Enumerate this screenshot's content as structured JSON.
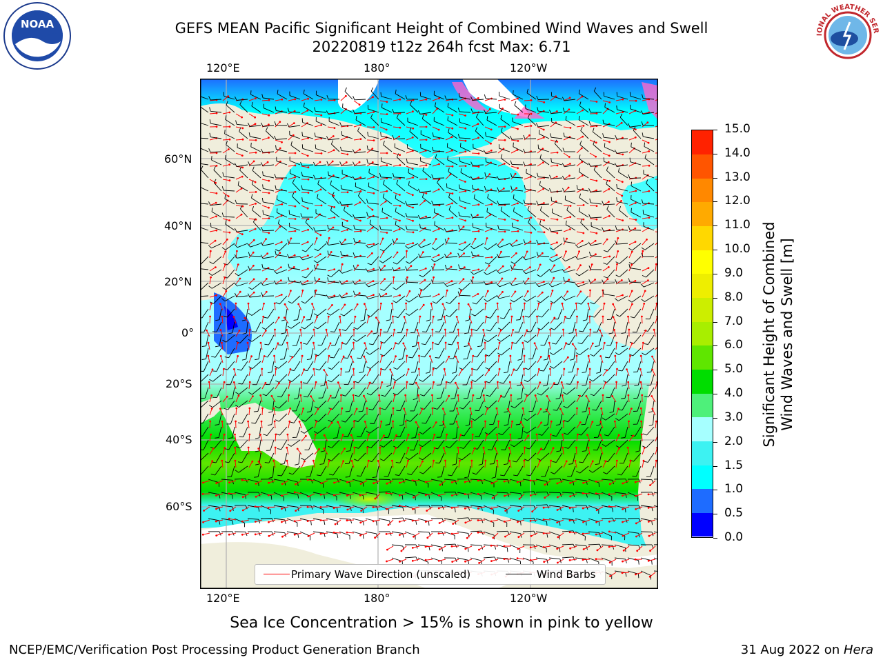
{
  "title": {
    "line1": "GEFS MEAN Pacific Significant Height of Combined Wind Waves and Swell",
    "line2": "20220819 t12z 264h fcst   Max: 6.71"
  },
  "logos": {
    "noaa": "NOAA",
    "nws": "NATIONAL WEATHER SERVICE"
  },
  "map": {
    "lon_labels": [
      "120°E",
      "180°",
      "120°W"
    ],
    "lat_labels": [
      "60°N",
      "40°N",
      "20°N",
      "0°",
      "20°S",
      "40°S",
      "60°S"
    ],
    "legend": {
      "wave_dir": "Primary Wave Direction (unscaled)",
      "wind": "Wind Barbs",
      "wave_color": "#ff0000",
      "wind_color": "#000000"
    },
    "colors": {
      "land": "#f0eedc",
      "ice_free_white": "#ffffff"
    }
  },
  "colorbar": {
    "label_line1": "Significant Height of Combined",
    "label_line2": "Wind Waves and Swell [m]",
    "ticks": [
      "0.0",
      "0.5",
      "1.0",
      "1.5",
      "2.0",
      "3.0",
      "4.0",
      "5.0",
      "6.0",
      "7.0",
      "8.0",
      "9.0",
      "10.0",
      "11.0",
      "12.0",
      "13.0",
      "14.0",
      "15.0"
    ],
    "colors": [
      "#0000ff",
      "#1e6cff",
      "#00ffff",
      "#3df2f2",
      "#a6ffff",
      "#4ef07a",
      "#00dd00",
      "#5fe600",
      "#a8ee00",
      "#ccee00",
      "#eeee00",
      "#ffff00",
      "#ffd800",
      "#ffaa00",
      "#ff8800",
      "#ff5500",
      "#ff2200"
    ]
  },
  "note": "Sea Ice Concentration > 15% is shown in pink to yellow",
  "footer": {
    "left": "NCEP/EMC/Verification Post Processing Product Generation Branch",
    "right_date": "31 Aug 2022 on ",
    "right_host": "Hera"
  }
}
